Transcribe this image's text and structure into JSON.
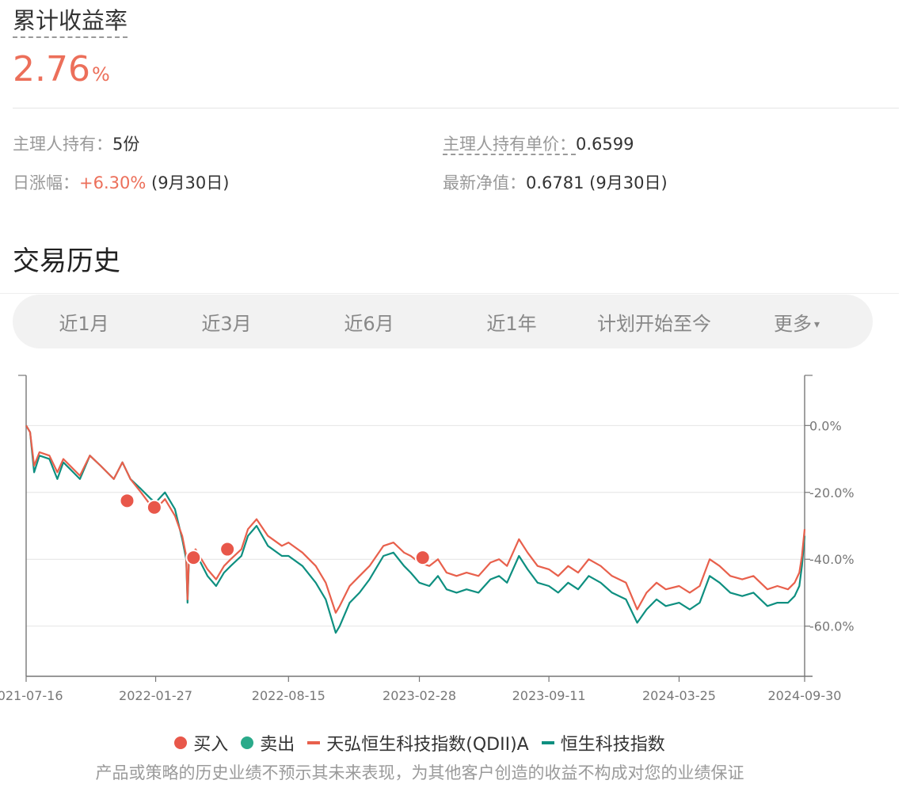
{
  "summary": {
    "label": "累计收益率",
    "value": "2.76",
    "unit": "%"
  },
  "info": {
    "holding_label": "主理人持有：",
    "holding_value": "5份",
    "unit_price_label": "主理人持有单价：",
    "unit_price_value": "0.6599",
    "daily_label": "日涨幅：",
    "daily_value": "+6.30%",
    "daily_date": "(9月30日)",
    "nav_label": "最新净值：",
    "nav_value": "0.6781",
    "nav_date": "(9月30日)"
  },
  "history": {
    "title": "交易历史",
    "tabs": [
      "近1月",
      "近3月",
      "近6月",
      "近1年",
      "计划开始至今",
      "更多"
    ],
    "more_caret": "▾"
  },
  "legend": {
    "buy": "买入",
    "sell": "卖出",
    "fund": "天弘恒生科技指数(QDII)A",
    "index": "恒生科技指数"
  },
  "disclaimer": "产品或策略的历史业绩不预示其未来表现，为其他客户创造的收益不构成对您的业绩保证",
  "colors": {
    "fund": "#e8604c",
    "index": "#0e8f80",
    "buy": "#e8574a",
    "sell": "#2aaa8a",
    "accent": "#ec6f5a"
  },
  "chart_data": {
    "type": "line",
    "x_ticks": [
      "2021-07-16",
      "2022-01-27",
      "2022-08-15",
      "2023-02-28",
      "2023-09-11",
      "2024-03-25",
      "2024-09-30"
    ],
    "y_ticks": [
      "0.0%",
      "-20.0%",
      "-40.0%",
      "-60.0%"
    ],
    "y_tick_values": [
      0,
      -20,
      -40,
      -60
    ],
    "ylim": [
      -75,
      15
    ],
    "series": [
      {
        "name": "天弘恒生科技指数(QDII)A",
        "points": [
          [
            "2021-07-16",
            0
          ],
          [
            "2021-07-22",
            -2
          ],
          [
            "2021-07-28",
            -12
          ],
          [
            "2021-08-05",
            -8
          ],
          [
            "2021-08-20",
            -9
          ],
          [
            "2021-09-01",
            -14
          ],
          [
            "2021-09-10",
            -10
          ],
          [
            "2021-09-20",
            -12
          ],
          [
            "2021-10-05",
            -15
          ],
          [
            "2021-10-20",
            -9
          ],
          [
            "2021-11-05",
            -12
          ],
          [
            "2021-11-25",
            -16
          ],
          [
            "2021-12-08",
            -11
          ],
          [
            "2021-12-20",
            -16
          ],
          [
            "2022-01-05",
            -20
          ],
          [
            "2022-01-20",
            -24
          ],
          [
            "2022-01-27",
            -25
          ],
          [
            "2022-02-10",
            -22
          ],
          [
            "2022-02-25",
            -27
          ],
          [
            "2022-03-08",
            -33
          ],
          [
            "2022-03-14",
            -39
          ],
          [
            "2022-03-16",
            -52
          ],
          [
            "2022-03-18",
            -40
          ],
          [
            "2022-03-28",
            -37
          ],
          [
            "2022-04-15",
            -43
          ],
          [
            "2022-04-28",
            -46
          ],
          [
            "2022-05-10",
            -42
          ],
          [
            "2022-05-20",
            -40
          ],
          [
            "2022-06-05",
            -37
          ],
          [
            "2022-06-15",
            -31
          ],
          [
            "2022-06-28",
            -28
          ],
          [
            "2022-07-15",
            -33
          ],
          [
            "2022-08-05",
            -36
          ],
          [
            "2022-08-15",
            -35
          ],
          [
            "2022-09-05",
            -38
          ],
          [
            "2022-09-25",
            -42
          ],
          [
            "2022-10-10",
            -47
          ],
          [
            "2022-10-25",
            -56
          ],
          [
            "2022-10-31",
            -54
          ],
          [
            "2022-11-15",
            -48
          ],
          [
            "2022-11-30",
            -45
          ],
          [
            "2022-12-15",
            -42
          ],
          [
            "2023-01-05",
            -36
          ],
          [
            "2023-01-20",
            -35
          ],
          [
            "2023-02-05",
            -38
          ],
          [
            "2023-02-15",
            -39
          ],
          [
            "2023-02-28",
            -41
          ],
          [
            "2023-03-15",
            -42
          ],
          [
            "2023-03-28",
            -40
          ],
          [
            "2023-04-10",
            -44
          ],
          [
            "2023-04-25",
            -45
          ],
          [
            "2023-05-10",
            -44
          ],
          [
            "2023-05-28",
            -45
          ],
          [
            "2023-06-15",
            -41
          ],
          [
            "2023-06-28",
            -40
          ],
          [
            "2023-07-10",
            -42
          ],
          [
            "2023-07-28",
            -34
          ],
          [
            "2023-08-10",
            -38
          ],
          [
            "2023-08-25",
            -42
          ],
          [
            "2023-09-11",
            -43
          ],
          [
            "2023-09-25",
            -45
          ],
          [
            "2023-10-10",
            -42
          ],
          [
            "2023-10-25",
            -44
          ],
          [
            "2023-11-10",
            -40
          ],
          [
            "2023-11-28",
            -42
          ],
          [
            "2023-12-15",
            -45
          ],
          [
            "2024-01-05",
            -47
          ],
          [
            "2024-01-22",
            -55
          ],
          [
            "2024-02-05",
            -50
          ],
          [
            "2024-02-20",
            -47
          ],
          [
            "2024-03-05",
            -49
          ],
          [
            "2024-03-25",
            -48
          ],
          [
            "2024-04-10",
            -50
          ],
          [
            "2024-04-25",
            -48
          ],
          [
            "2024-05-10",
            -40
          ],
          [
            "2024-05-25",
            -42
          ],
          [
            "2024-06-10",
            -45
          ],
          [
            "2024-06-28",
            -46
          ],
          [
            "2024-07-15",
            -45
          ],
          [
            "2024-08-05",
            -49
          ],
          [
            "2024-08-20",
            -48
          ],
          [
            "2024-09-05",
            -49
          ],
          [
            "2024-09-15",
            -47
          ],
          [
            "2024-09-22",
            -44
          ],
          [
            "2024-09-26",
            -39
          ],
          [
            "2024-09-30",
            -31
          ]
        ]
      },
      {
        "name": "恒生科技指数",
        "points": [
          [
            "2021-07-16",
            0
          ],
          [
            "2021-07-22",
            -2
          ],
          [
            "2021-07-28",
            -14
          ],
          [
            "2021-08-05",
            -9
          ],
          [
            "2021-08-20",
            -10
          ],
          [
            "2021-09-01",
            -16
          ],
          [
            "2021-09-10",
            -11
          ],
          [
            "2021-09-20",
            -13
          ],
          [
            "2021-10-05",
            -16
          ],
          [
            "2021-10-20",
            -9
          ],
          [
            "2021-11-05",
            -12
          ],
          [
            "2021-11-25",
            -16
          ],
          [
            "2021-12-08",
            -11
          ],
          [
            "2021-12-20",
            -16
          ],
          [
            "2022-01-05",
            -19
          ],
          [
            "2022-01-20",
            -22
          ],
          [
            "2022-01-27",
            -23
          ],
          [
            "2022-02-10",
            -20
          ],
          [
            "2022-02-25",
            -25
          ],
          [
            "2022-03-08",
            -34
          ],
          [
            "2022-03-14",
            -40
          ],
          [
            "2022-03-16",
            -53
          ],
          [
            "2022-03-18",
            -41
          ],
          [
            "2022-03-28",
            -38
          ],
          [
            "2022-04-15",
            -45
          ],
          [
            "2022-04-28",
            -48
          ],
          [
            "2022-05-10",
            -44
          ],
          [
            "2022-05-20",
            -42
          ],
          [
            "2022-06-05",
            -39
          ],
          [
            "2022-06-15",
            -33
          ],
          [
            "2022-06-28",
            -30
          ],
          [
            "2022-07-15",
            -36
          ],
          [
            "2022-08-05",
            -39
          ],
          [
            "2022-08-15",
            -39
          ],
          [
            "2022-09-05",
            -42
          ],
          [
            "2022-09-25",
            -47
          ],
          [
            "2022-10-10",
            -52
          ],
          [
            "2022-10-25",
            -62
          ],
          [
            "2022-10-31",
            -60
          ],
          [
            "2022-11-15",
            -53
          ],
          [
            "2022-11-30",
            -50
          ],
          [
            "2022-12-15",
            -46
          ],
          [
            "2023-01-05",
            -39
          ],
          [
            "2023-01-20",
            -38
          ],
          [
            "2023-02-05",
            -42
          ],
          [
            "2023-02-15",
            -44
          ],
          [
            "2023-02-28",
            -47
          ],
          [
            "2023-03-15",
            -48
          ],
          [
            "2023-03-28",
            -45
          ],
          [
            "2023-04-10",
            -49
          ],
          [
            "2023-04-25",
            -50
          ],
          [
            "2023-05-10",
            -49
          ],
          [
            "2023-05-28",
            -50
          ],
          [
            "2023-06-15",
            -46
          ],
          [
            "2023-06-28",
            -45
          ],
          [
            "2023-07-10",
            -47
          ],
          [
            "2023-07-28",
            -39
          ],
          [
            "2023-08-10",
            -43
          ],
          [
            "2023-08-25",
            -47
          ],
          [
            "2023-09-11",
            -48
          ],
          [
            "2023-09-25",
            -50
          ],
          [
            "2023-10-10",
            -47
          ],
          [
            "2023-10-25",
            -49
          ],
          [
            "2023-11-10",
            -45
          ],
          [
            "2023-11-28",
            -47
          ],
          [
            "2023-12-15",
            -50
          ],
          [
            "2024-01-05",
            -52
          ],
          [
            "2024-01-22",
            -59
          ],
          [
            "2024-02-05",
            -55
          ],
          [
            "2024-02-20",
            -52
          ],
          [
            "2024-03-05",
            -54
          ],
          [
            "2024-03-25",
            -53
          ],
          [
            "2024-04-10",
            -55
          ],
          [
            "2024-04-25",
            -53
          ],
          [
            "2024-05-10",
            -45
          ],
          [
            "2024-05-25",
            -47
          ],
          [
            "2024-06-10",
            -50
          ],
          [
            "2024-06-28",
            -51
          ],
          [
            "2024-07-15",
            -50
          ],
          [
            "2024-08-05",
            -54
          ],
          [
            "2024-08-20",
            -53
          ],
          [
            "2024-09-05",
            -53
          ],
          [
            "2024-09-15",
            -51
          ],
          [
            "2024-09-22",
            -48
          ],
          [
            "2024-09-26",
            -42
          ],
          [
            "2024-09-30",
            -33
          ]
        ]
      }
    ],
    "buy_points": [
      [
        "2021-12-15",
        -22.5
      ],
      [
        "2022-01-25",
        -24.5
      ],
      [
        "2022-03-25",
        -39.5
      ],
      [
        "2022-05-15",
        -37
      ],
      [
        "2023-03-05",
        -39.5
      ]
    ],
    "sell_points": []
  }
}
